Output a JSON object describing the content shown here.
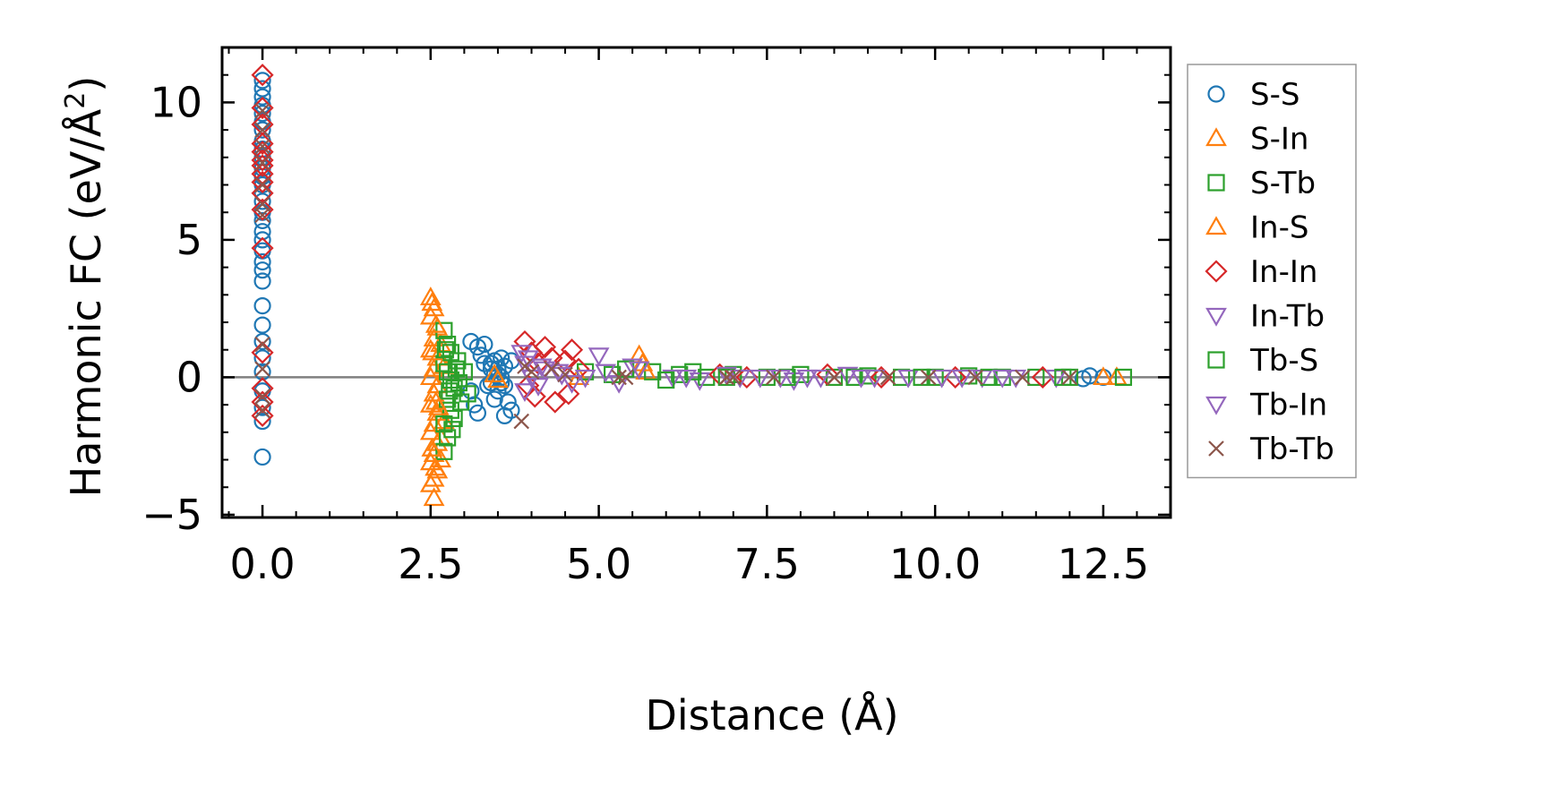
{
  "chart_data": {
    "type": "scatter",
    "title": "",
    "xlabel": "Distance (Å)",
    "ylabel_main": "Harmonic FC (eV/Å",
    "ylabel_sup": "2",
    "ylabel_close": ")",
    "xlim": [
      -0.6,
      13.5
    ],
    "ylim": [
      -5.1,
      12.0
    ],
    "xticks": [
      0.0,
      2.5,
      5.0,
      7.5,
      10.0,
      12.5
    ],
    "xtick_labels": [
      "0.0",
      "2.5",
      "5.0",
      "7.5",
      "10.0",
      "12.5"
    ],
    "yticks": [
      -5,
      0,
      5,
      10
    ],
    "ytick_labels": [
      "−5",
      "0",
      "5",
      "10"
    ],
    "zero_line": 0,
    "legend_position": "outside-right",
    "series": [
      {
        "name": "S-S",
        "marker": "circle",
        "color": "#1f77b4",
        "points": [
          [
            0,
            10.8
          ],
          [
            0,
            10.5
          ],
          [
            0,
            10.2
          ],
          [
            0,
            9.9
          ],
          [
            0,
            9.6
          ],
          [
            0,
            9.3
          ],
          [
            0,
            9.0
          ],
          [
            0,
            8.6
          ],
          [
            0,
            8.3
          ],
          [
            0,
            8.0
          ],
          [
            0,
            7.6
          ],
          [
            0,
            7.3
          ],
          [
            0,
            7.0
          ],
          [
            0,
            6.7
          ],
          [
            0,
            6.4
          ],
          [
            0,
            6.0
          ],
          [
            0,
            5.7
          ],
          [
            0,
            5.3
          ],
          [
            0,
            5.0
          ],
          [
            0,
            4.6
          ],
          [
            0,
            4.2
          ],
          [
            0,
            3.9
          ],
          [
            0,
            3.5
          ],
          [
            0,
            2.6
          ],
          [
            0,
            1.9
          ],
          [
            0,
            1.3
          ],
          [
            0,
            0.7
          ],
          [
            0,
            0.2
          ],
          [
            0,
            -0.5
          ],
          [
            0,
            -1.1
          ],
          [
            0,
            -1.6
          ],
          [
            0,
            -2.9
          ],
          [
            3.1,
            1.3
          ],
          [
            3.2,
            1.1
          ],
          [
            3.25,
            0.8
          ],
          [
            3.3,
            1.2
          ],
          [
            3.1,
            -0.5
          ],
          [
            3.15,
            -1.0
          ],
          [
            3.2,
            -1.3
          ],
          [
            3.3,
            0.5
          ],
          [
            3.35,
            -0.3
          ],
          [
            3.45,
            0.6
          ],
          [
            3.4,
            0.3
          ],
          [
            3.45,
            0.1
          ],
          [
            3.4,
            -0.2
          ],
          [
            3.5,
            -0.5
          ],
          [
            3.45,
            -0.8
          ],
          [
            3.55,
            0.7
          ],
          [
            3.6,
            0.4
          ],
          [
            3.55,
            0.0
          ],
          [
            3.6,
            -0.3
          ],
          [
            3.65,
            -0.9
          ],
          [
            3.6,
            -1.4
          ],
          [
            3.7,
            -1.2
          ],
          [
            3.7,
            0.6
          ],
          [
            3.5,
            0.3
          ],
          [
            3.55,
            -0.2
          ],
          [
            3.4,
            0.5
          ],
          [
            3.5,
            0.1
          ],
          [
            12.3,
            0.05
          ],
          [
            12.5,
            0.0
          ],
          [
            12.2,
            -0.05
          ]
        ]
      },
      {
        "name": "S-In",
        "marker": "triangle-up",
        "color": "#ff7f0e",
        "points": [
          [
            2.5,
            2.9
          ],
          [
            2.55,
            2.5
          ],
          [
            2.5,
            2.2
          ],
          [
            2.6,
            1.8
          ],
          [
            2.55,
            1.4
          ],
          [
            2.5,
            1.0
          ],
          [
            2.6,
            0.7
          ],
          [
            2.55,
            0.3
          ],
          [
            2.5,
            0.0
          ],
          [
            2.6,
            -0.3
          ],
          [
            2.55,
            -0.6
          ],
          [
            2.5,
            -1.0
          ],
          [
            2.6,
            -1.3
          ],
          [
            2.55,
            -1.7
          ],
          [
            2.5,
            -2.0
          ],
          [
            2.6,
            -2.4
          ],
          [
            2.55,
            -2.8
          ],
          [
            2.5,
            -3.1
          ],
          [
            2.6,
            -3.4
          ],
          [
            2.55,
            -3.7
          ],
          [
            2.5,
            -3.9
          ],
          [
            2.55,
            -4.4
          ],
          [
            2.65,
            -3.0
          ],
          [
            2.65,
            -2.2
          ],
          [
            2.7,
            -1.6
          ],
          [
            2.65,
            1.2
          ],
          [
            2.7,
            0.4
          ],
          [
            3.45,
            0.1
          ],
          [
            3.5,
            -0.1
          ],
          [
            5.6,
            0.8
          ],
          [
            5.7,
            0.2
          ],
          [
            4.7,
            0.0
          ],
          [
            12.5,
            0.0
          ],
          [
            12.7,
            0.0
          ]
        ]
      },
      {
        "name": "S-Tb",
        "marker": "square",
        "color": "#2ca02c",
        "points": [
          [
            2.7,
            1.7
          ],
          [
            2.75,
            1.2
          ],
          [
            2.8,
            0.9
          ],
          [
            2.7,
            0.5
          ],
          [
            2.75,
            0.2
          ],
          [
            2.8,
            -0.1
          ],
          [
            2.85,
            -0.4
          ],
          [
            2.75,
            -0.8
          ],
          [
            2.8,
            -1.2
          ],
          [
            2.7,
            -1.7
          ],
          [
            2.75,
            -2.2
          ],
          [
            2.7,
            -2.7
          ],
          [
            2.85,
            -1.5
          ],
          [
            2.9,
            0.6
          ],
          [
            2.95,
            -0.9
          ],
          [
            3.0,
            0.2
          ],
          [
            3.05,
            -0.6
          ],
          [
            4.8,
            0.2
          ],
          [
            5.2,
            0.1
          ],
          [
            5.8,
            0.2
          ],
          [
            6.2,
            0.1
          ],
          [
            6.6,
            0.0
          ],
          [
            7.0,
            0.1
          ],
          [
            7.5,
            0.0
          ],
          [
            8.0,
            0.1
          ],
          [
            8.5,
            0.0
          ],
          [
            9.0,
            0.05
          ],
          [
            9.5,
            0.0
          ],
          [
            10.0,
            0.0
          ],
          [
            10.5,
            0.05
          ],
          [
            11.0,
            0.0
          ],
          [
            11.5,
            0.0
          ],
          [
            12.0,
            0.0
          ],
          [
            12.8,
            0.0
          ]
        ]
      },
      {
        "name": "In-S",
        "marker": "triangle-up",
        "color": "#ff7f0e",
        "points": [
          [
            2.52,
            2.7
          ],
          [
            2.58,
            1.9
          ],
          [
            2.53,
            0.9
          ],
          [
            2.58,
            -0.9
          ],
          [
            2.52,
            -2.6
          ],
          [
            2.57,
            -3.3
          ],
          [
            2.62,
            -1.1
          ],
          [
            5.65,
            0.5
          ]
        ]
      },
      {
        "name": "In-In",
        "marker": "diamond",
        "color": "#d62728",
        "points": [
          [
            0,
            11.0
          ],
          [
            0,
            9.8
          ],
          [
            0,
            9.2
          ],
          [
            0,
            8.5
          ],
          [
            0,
            8.2
          ],
          [
            0,
            7.9
          ],
          [
            0,
            7.7
          ],
          [
            0,
            7.4
          ],
          [
            0,
            7.1
          ],
          [
            0,
            6.7
          ],
          [
            0,
            6.1
          ],
          [
            0,
            4.7
          ],
          [
            0,
            0.9
          ],
          [
            0,
            -0.4
          ],
          [
            0,
            -0.9
          ],
          [
            0,
            -1.4
          ],
          [
            3.9,
            1.3
          ],
          [
            4.0,
            0.9
          ],
          [
            4.1,
            0.5
          ],
          [
            3.95,
            -0.3
          ],
          [
            4.05,
            -0.7
          ],
          [
            4.2,
            1.1
          ],
          [
            4.3,
            0.7
          ],
          [
            4.35,
            -0.9
          ],
          [
            4.5,
            0.6
          ],
          [
            4.6,
            1.0
          ],
          [
            4.55,
            -0.6
          ],
          [
            4.7,
            0.3
          ],
          [
            6.8,
            0.1
          ],
          [
            7.2,
            0.0
          ],
          [
            8.4,
            0.1
          ],
          [
            9.2,
            0.0
          ],
          [
            10.3,
            0.0
          ],
          [
            11.6,
            0.0
          ]
        ]
      },
      {
        "name": "In-Tb",
        "marker": "triangle-down",
        "color": "#9467bd",
        "points": [
          [
            3.85,
            0.9
          ],
          [
            3.9,
            0.5
          ],
          [
            4.0,
            0.0
          ],
          [
            3.9,
            -0.5
          ],
          [
            4.1,
            -0.3
          ],
          [
            4.2,
            0.3
          ],
          [
            4.4,
            0.2
          ],
          [
            4.6,
            -0.2
          ],
          [
            5.0,
            0.8
          ],
          [
            5.1,
            0.2
          ],
          [
            5.3,
            -0.2
          ],
          [
            5.5,
            0.4
          ],
          [
            6.1,
            0.0
          ],
          [
            6.5,
            -0.1
          ],
          [
            6.9,
            0.1
          ],
          [
            7.4,
            0.0
          ],
          [
            7.9,
            -0.1
          ],
          [
            8.3,
            0.0
          ],
          [
            8.7,
            0.1
          ],
          [
            9.1,
            0.0
          ],
          [
            9.6,
            0.0
          ],
          [
            10.1,
            0.0
          ],
          [
            10.7,
            0.0
          ],
          [
            11.2,
            0.0
          ],
          [
            11.8,
            0.0
          ]
        ]
      },
      {
        "name": "Tb-S",
        "marker": "square",
        "color": "#2ca02c",
        "points": [
          [
            2.72,
            1.0
          ],
          [
            2.78,
            -0.5
          ],
          [
            2.82,
            -1.9
          ],
          [
            2.88,
            0.3
          ],
          [
            2.92,
            -0.2
          ],
          [
            5.4,
            0.3
          ],
          [
            6.0,
            -0.1
          ],
          [
            6.4,
            0.2
          ],
          [
            6.9,
            0.0
          ],
          [
            7.8,
            0.0
          ],
          [
            8.8,
            0.0
          ],
          [
            9.8,
            0.0
          ],
          [
            10.8,
            0.0
          ],
          [
            11.9,
            0.0
          ]
        ]
      },
      {
        "name": "Tb-In",
        "marker": "triangle-down",
        "color": "#9467bd",
        "points": [
          [
            3.95,
            0.7
          ],
          [
            4.15,
            0.4
          ],
          [
            4.45,
            0.1
          ],
          [
            4.8,
            0.0
          ],
          [
            5.6,
            0.3
          ],
          [
            6.3,
            0.0
          ],
          [
            7.1,
            0.0
          ],
          [
            7.7,
            0.0
          ],
          [
            8.1,
            0.0
          ],
          [
            8.9,
            0.0
          ],
          [
            10.4,
            0.0
          ],
          [
            11.0,
            0.0
          ]
        ]
      },
      {
        "name": "Tb-Tb",
        "marker": "x",
        "color": "#8c564b",
        "points": [
          [
            0,
            9.7
          ],
          [
            0,
            9.0
          ],
          [
            0,
            8.4
          ],
          [
            0,
            7.8
          ],
          [
            0,
            7.0
          ],
          [
            0,
            6.3
          ],
          [
            0,
            5.9
          ],
          [
            0,
            1.2
          ],
          [
            0,
            0.3
          ],
          [
            0,
            -0.7
          ],
          [
            0,
            -1.2
          ],
          [
            3.85,
            -1.6
          ],
          [
            3.9,
            0.4
          ],
          [
            4.0,
            0.2
          ],
          [
            4.3,
            0.3
          ],
          [
            4.5,
            0.1
          ],
          [
            5.3,
            0.0
          ],
          [
            5.4,
            0.0
          ],
          [
            6.9,
            0.0
          ],
          [
            7.0,
            0.0
          ],
          [
            7.6,
            0.0
          ],
          [
            8.5,
            0.0
          ],
          [
            9.3,
            0.0
          ],
          [
            9.9,
            0.0
          ],
          [
            10.6,
            0.0
          ],
          [
            11.3,
            0.0
          ],
          [
            12.0,
            0.0
          ]
        ]
      }
    ]
  }
}
